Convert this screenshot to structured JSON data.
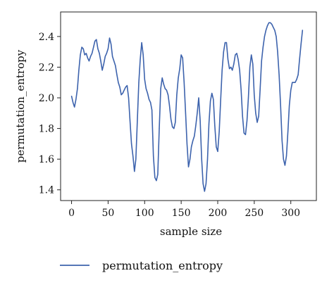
{
  "chart_data": {
    "type": "line",
    "xlabel": "sample size",
    "ylabel": "permutation_entropy",
    "xlim": [
      -15,
      335
    ],
    "ylim": [
      1.33,
      2.56
    ],
    "x_ticks": [
      0,
      50,
      100,
      150,
      200,
      250,
      300
    ],
    "y_ticks": [
      1.4,
      1.6,
      1.8,
      2.0,
      2.2,
      2.4
    ],
    "grid": false,
    "legend_position": "bottom",
    "color": "#3d63ad",
    "series": [
      {
        "name": "permutation_entropy",
        "points": [
          [
            0,
            2.01
          ],
          [
            2,
            1.97
          ],
          [
            4,
            1.94
          ],
          [
            6,
            1.99
          ],
          [
            8,
            2.06
          ],
          [
            10,
            2.18
          ],
          [
            12,
            2.28
          ],
          [
            14,
            2.33
          ],
          [
            16,
            2.32
          ],
          [
            18,
            2.28
          ],
          [
            20,
            2.29
          ],
          [
            22,
            2.26
          ],
          [
            24,
            2.24
          ],
          [
            26,
            2.27
          ],
          [
            28,
            2.29
          ],
          [
            30,
            2.33
          ],
          [
            32,
            2.37
          ],
          [
            34,
            2.38
          ],
          [
            36,
            2.32
          ],
          [
            38,
            2.29
          ],
          [
            40,
            2.24
          ],
          [
            42,
            2.18
          ],
          [
            44,
            2.22
          ],
          [
            46,
            2.27
          ],
          [
            48,
            2.29
          ],
          [
            50,
            2.32
          ],
          [
            52,
            2.39
          ],
          [
            54,
            2.35
          ],
          [
            56,
            2.27
          ],
          [
            58,
            2.24
          ],
          [
            60,
            2.21
          ],
          [
            62,
            2.15
          ],
          [
            64,
            2.1
          ],
          [
            66,
            2.07
          ],
          [
            68,
            2.02
          ],
          [
            70,
            2.03
          ],
          [
            72,
            2.05
          ],
          [
            74,
            2.07
          ],
          [
            76,
            2.08
          ],
          [
            78,
            2.0
          ],
          [
            80,
            1.85
          ],
          [
            82,
            1.7
          ],
          [
            84,
            1.62
          ],
          [
            86,
            1.52
          ],
          [
            88,
            1.6
          ],
          [
            90,
            1.85
          ],
          [
            92,
            2.1
          ],
          [
            94,
            2.25
          ],
          [
            96,
            2.36
          ],
          [
            98,
            2.28
          ],
          [
            100,
            2.12
          ],
          [
            102,
            2.06
          ],
          [
            104,
            2.03
          ],
          [
            106,
            1.99
          ],
          [
            108,
            1.97
          ],
          [
            110,
            1.92
          ],
          [
            112,
            1.62
          ],
          [
            114,
            1.48
          ],
          [
            116,
            1.46
          ],
          [
            118,
            1.5
          ],
          [
            120,
            1.8
          ],
          [
            122,
            2.06
          ],
          [
            124,
            2.13
          ],
          [
            126,
            2.09
          ],
          [
            128,
            2.06
          ],
          [
            130,
            2.05
          ],
          [
            132,
            2.02
          ],
          [
            134,
            1.95
          ],
          [
            136,
            1.86
          ],
          [
            138,
            1.81
          ],
          [
            140,
            1.8
          ],
          [
            142,
            1.84
          ],
          [
            144,
            2.02
          ],
          [
            146,
            2.13
          ],
          [
            148,
            2.19
          ],
          [
            150,
            2.28
          ],
          [
            152,
            2.26
          ],
          [
            154,
            2.1
          ],
          [
            156,
            1.9
          ],
          [
            158,
            1.7
          ],
          [
            160,
            1.55
          ],
          [
            162,
            1.6
          ],
          [
            164,
            1.68
          ],
          [
            166,
            1.72
          ],
          [
            168,
            1.75
          ],
          [
            170,
            1.82
          ],
          [
            172,
            1.9
          ],
          [
            174,
            2.0
          ],
          [
            176,
            1.85
          ],
          [
            178,
            1.6
          ],
          [
            180,
            1.44
          ],
          [
            182,
            1.39
          ],
          [
            184,
            1.44
          ],
          [
            186,
            1.6
          ],
          [
            188,
            1.83
          ],
          [
            190,
            1.98
          ],
          [
            192,
            2.03
          ],
          [
            194,
            1.99
          ],
          [
            196,
            1.82
          ],
          [
            198,
            1.68
          ],
          [
            200,
            1.65
          ],
          [
            202,
            1.78
          ],
          [
            204,
            1.98
          ],
          [
            206,
            2.18
          ],
          [
            208,
            2.3
          ],
          [
            210,
            2.36
          ],
          [
            212,
            2.36
          ],
          [
            214,
            2.25
          ],
          [
            216,
            2.19
          ],
          [
            218,
            2.2
          ],
          [
            220,
            2.18
          ],
          [
            222,
            2.22
          ],
          [
            224,
            2.28
          ],
          [
            226,
            2.29
          ],
          [
            228,
            2.25
          ],
          [
            230,
            2.18
          ],
          [
            232,
            2.05
          ],
          [
            234,
            1.88
          ],
          [
            236,
            1.77
          ],
          [
            238,
            1.76
          ],
          [
            240,
            1.85
          ],
          [
            242,
            2.0
          ],
          [
            244,
            2.2
          ],
          [
            246,
            2.28
          ],
          [
            248,
            2.22
          ],
          [
            250,
            2.02
          ],
          [
            252,
            1.9
          ],
          [
            254,
            1.84
          ],
          [
            256,
            1.88
          ],
          [
            258,
            2.05
          ],
          [
            260,
            2.24
          ],
          [
            262,
            2.33
          ],
          [
            264,
            2.4
          ],
          [
            266,
            2.44
          ],
          [
            268,
            2.47
          ],
          [
            270,
            2.49
          ],
          [
            272,
            2.49
          ],
          [
            274,
            2.48
          ],
          [
            276,
            2.46
          ],
          [
            278,
            2.44
          ],
          [
            280,
            2.4
          ],
          [
            282,
            2.3
          ],
          [
            284,
            2.15
          ],
          [
            286,
            1.95
          ],
          [
            288,
            1.72
          ],
          [
            290,
            1.6
          ],
          [
            292,
            1.56
          ],
          [
            294,
            1.62
          ],
          [
            296,
            1.78
          ],
          [
            298,
            1.95
          ],
          [
            300,
            2.05
          ],
          [
            302,
            2.1
          ],
          [
            304,
            2.1
          ],
          [
            306,
            2.1
          ],
          [
            308,
            2.12
          ],
          [
            310,
            2.15
          ],
          [
            312,
            2.25
          ],
          [
            314,
            2.35
          ],
          [
            316,
            2.44
          ]
        ]
      }
    ]
  }
}
